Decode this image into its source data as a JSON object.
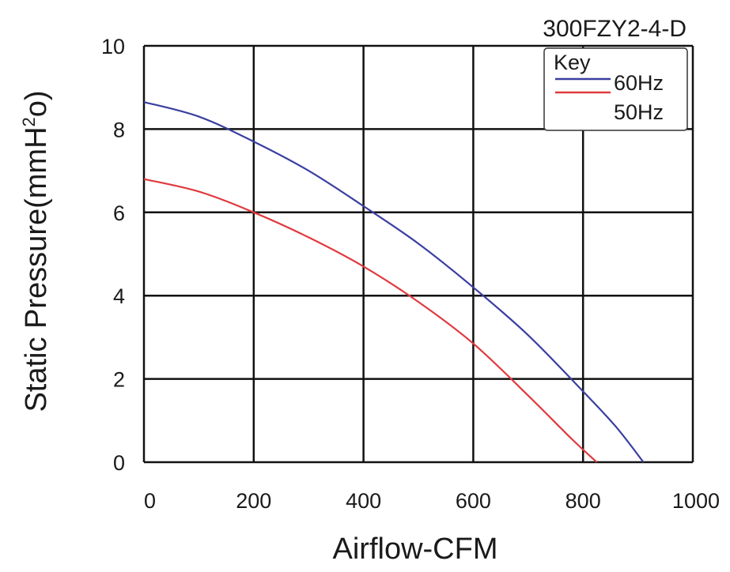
{
  "chart_data": {
    "type": "line",
    "title": "300FZY2-4-D",
    "xlabel": "Airflow-CFM",
    "ylabel_main": "Static Pressure(mmH",
    "ylabel_sup": "2",
    "ylabel_tail": "o)",
    "xlim": [
      0,
      1000
    ],
    "ylim": [
      0,
      10
    ],
    "xticks": [
      0,
      200,
      400,
      600,
      800,
      1000
    ],
    "yticks": [
      0,
      2,
      4,
      6,
      8,
      10
    ],
    "grid": true,
    "legend": {
      "title": "Key",
      "placement": "top-right"
    },
    "series": [
      {
        "name": "60Hz",
        "color": "#3a3fa0",
        "x": [
          0,
          100,
          200,
          300,
          400,
          500,
          600,
          700,
          800,
          860,
          910
        ],
        "y": [
          8.65,
          8.3,
          7.7,
          7.0,
          6.15,
          5.25,
          4.2,
          3.05,
          1.7,
          0.85,
          0
        ]
      },
      {
        "name": "50Hz",
        "color": "#e03a3e",
        "x": [
          0,
          100,
          200,
          300,
          400,
          500,
          600,
          700,
          780,
          825
        ],
        "y": [
          6.8,
          6.5,
          6.0,
          5.4,
          4.7,
          3.85,
          2.85,
          1.6,
          0.55,
          0
        ]
      }
    ]
  }
}
